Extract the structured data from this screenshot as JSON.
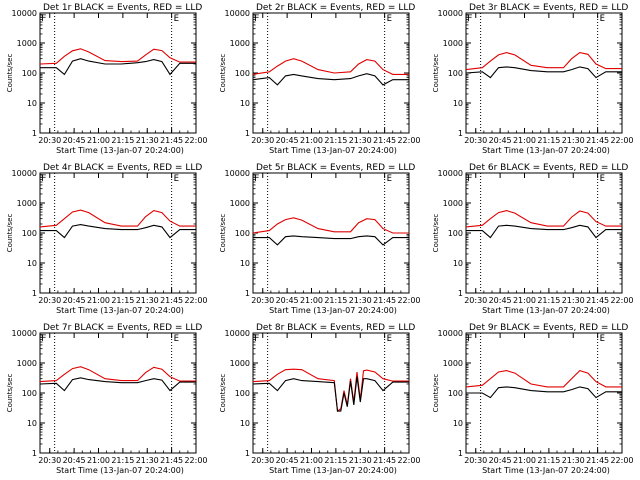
{
  "figure": {
    "xlabel": "Start Time (13-Jan-07 20:24:00)",
    "ylabel": "Counts/sec",
    "x_tick_labels": [
      "20:30",
      "20:45",
      "21:00",
      "21:15",
      "21:30",
      "21:45",
      "22:00"
    ],
    "y_tick_labels": [
      "1",
      "10",
      "100",
      "1000",
      "10000"
    ],
    "marker_left": "F",
    "marker_right": "E",
    "series_colors": {
      "black": "#000000",
      "red": "#e00000"
    }
  },
  "chart_data": [
    {
      "type": "line",
      "title": "Det 1r BLACK = Events, RED = LLD",
      "yscale": "log",
      "ylim": [
        1,
        10000
      ],
      "x_minutes_after_start": [
        0,
        10,
        15,
        20,
        25,
        30,
        40,
        50,
        60,
        65,
        70,
        75,
        80,
        86,
        91,
        96
      ],
      "series": [
        {
          "values": [
            200,
            210,
            360,
            550,
            640,
            500,
            260,
            240,
            250,
            400,
            620,
            560,
            320,
            230,
            230,
            230
          ]
        },
        {
          "values": [
            150,
            150,
            90,
            250,
            300,
            250,
            200,
            200,
            220,
            240,
            280,
            240,
            90,
            210,
            210,
            210
          ]
        }
      ],
      "vlines_minutes_after_start": [
        9,
        81
      ]
    },
    {
      "type": "line",
      "title": "Det 2r BLACK = Events, RED = LLD",
      "yscale": "log",
      "ylim": [
        1,
        10000
      ],
      "x_minutes_after_start": [
        0,
        10,
        15,
        20,
        25,
        30,
        40,
        50,
        60,
        65,
        70,
        75,
        80,
        86,
        91,
        96
      ],
      "series": [
        {
          "values": [
            90,
            110,
            170,
            250,
            300,
            250,
            130,
            100,
            110,
            200,
            280,
            250,
            130,
            90,
            90,
            90
          ]
        },
        {
          "values": [
            60,
            70,
            40,
            80,
            90,
            80,
            65,
            60,
            65,
            80,
            95,
            80,
            40,
            60,
            60,
            60
          ]
        }
      ],
      "vlines_minutes_after_start": [
        9,
        81
      ]
    },
    {
      "type": "line",
      "title": "Det 3r BLACK = Events, RED = LLD",
      "yscale": "log",
      "ylim": [
        1,
        10000
      ],
      "x_minutes_after_start": [
        0,
        10,
        15,
        20,
        25,
        30,
        40,
        50,
        60,
        65,
        70,
        75,
        80,
        86,
        91,
        96
      ],
      "series": [
        {
          "values": [
            130,
            150,
            250,
            400,
            480,
            400,
            180,
            150,
            150,
            300,
            480,
            420,
            200,
            140,
            140,
            140
          ]
        },
        {
          "values": [
            100,
            110,
            70,
            150,
            160,
            150,
            120,
            110,
            110,
            130,
            160,
            140,
            70,
            110,
            110,
            110
          ]
        }
      ],
      "vlines_minutes_after_start": [
        9,
        81
      ]
    },
    {
      "type": "line",
      "title": "Det 4r BLACK = Events, RED = LLD",
      "yscale": "log",
      "ylim": [
        1,
        10000
      ],
      "x_minutes_after_start": [
        0,
        10,
        15,
        20,
        25,
        30,
        40,
        50,
        60,
        65,
        70,
        75,
        80,
        86,
        91,
        96
      ],
      "series": [
        {
          "values": [
            160,
            180,
            300,
            500,
            580,
            480,
            220,
            170,
            170,
            350,
            560,
            480,
            250,
            170,
            170,
            170
          ]
        },
        {
          "values": [
            120,
            120,
            70,
            170,
            190,
            170,
            140,
            130,
            130,
            150,
            180,
            160,
            70,
            130,
            130,
            130
          ]
        }
      ],
      "vlines_minutes_after_start": [
        9,
        81
      ]
    },
    {
      "type": "line",
      "title": "Det 5r BLACK = Events, RED = LLD",
      "yscale": "log",
      "ylim": [
        1,
        10000
      ],
      "x_minutes_after_start": [
        0,
        10,
        15,
        20,
        25,
        30,
        40,
        50,
        60,
        65,
        70,
        75,
        80,
        86,
        91,
        96
      ],
      "series": [
        {
          "values": [
            100,
            120,
            200,
            280,
            320,
            270,
            140,
            110,
            110,
            220,
            300,
            280,
            140,
            100,
            100,
            100
          ]
        },
        {
          "values": [
            70,
            70,
            40,
            75,
            80,
            75,
            70,
            65,
            65,
            75,
            80,
            75,
            40,
            70,
            70,
            70
          ]
        }
      ],
      "vlines_minutes_after_start": [
        9,
        81
      ]
    },
    {
      "type": "line",
      "title": "Det 6r BLACK = Events, RED = LLD",
      "yscale": "log",
      "ylim": [
        1,
        10000
      ],
      "x_minutes_after_start": [
        0,
        10,
        15,
        20,
        25,
        30,
        40,
        50,
        60,
        65,
        70,
        75,
        80,
        86,
        91,
        96
      ],
      "series": [
        {
          "values": [
            160,
            180,
            300,
            480,
            560,
            460,
            220,
            170,
            170,
            340,
            540,
            460,
            240,
            170,
            170,
            170
          ]
        },
        {
          "values": [
            120,
            120,
            70,
            170,
            180,
            170,
            140,
            130,
            130,
            150,
            180,
            160,
            70,
            130,
            130,
            130
          ]
        }
      ],
      "vlines_minutes_after_start": [
        9,
        81
      ]
    },
    {
      "type": "line",
      "title": "Det 7r BLACK = Events, RED = LLD",
      "yscale": "log",
      "ylim": [
        1,
        10000
      ],
      "x_minutes_after_start": [
        0,
        10,
        15,
        20,
        25,
        30,
        40,
        50,
        60,
        65,
        70,
        75,
        80,
        86,
        91,
        96
      ],
      "series": [
        {
          "values": [
            240,
            260,
            420,
            650,
            750,
            600,
            300,
            260,
            260,
            480,
            720,
            620,
            350,
            250,
            250,
            250
          ]
        },
        {
          "values": [
            200,
            210,
            120,
            280,
            320,
            280,
            240,
            220,
            220,
            260,
            300,
            270,
            120,
            230,
            230,
            230
          ]
        }
      ],
      "vlines_minutes_after_start": [
        9,
        81
      ]
    },
    {
      "type": "line",
      "title": "Det 8r BLACK = Events, RED = LLD",
      "yscale": "log",
      "ylim": [
        1,
        10000
      ],
      "x_minutes_after_start": [
        0,
        10,
        15,
        20,
        25,
        30,
        40,
        50,
        52,
        54,
        56,
        58,
        60,
        62,
        64,
        66,
        68,
        70,
        75,
        80,
        86,
        91,
        96
      ],
      "series": [
        {
          "values": [
            240,
            260,
            420,
            600,
            620,
            600,
            300,
            260,
            25,
            30,
            120,
            40,
            300,
            50,
            500,
            60,
            550,
            580,
            500,
            300,
            250,
            250,
            250
          ]
        },
        {
          "values": [
            200,
            210,
            120,
            260,
            300,
            260,
            240,
            220,
            25,
            25,
            100,
            35,
            250,
            40,
            350,
            50,
            300,
            300,
            260,
            120,
            230,
            230,
            230
          ]
        }
      ],
      "vlines_minutes_after_start": [
        9,
        81
      ]
    },
    {
      "type": "line",
      "title": "Det 9r BLACK = Events, RED = LLD",
      "yscale": "log",
      "ylim": [
        1,
        10000
      ],
      "x_minutes_after_start": [
        0,
        10,
        15,
        20,
        25,
        30,
        40,
        50,
        60,
        65,
        70,
        75,
        80,
        86,
        91,
        96
      ],
      "series": [
        {
          "values": [
            160,
            180,
            300,
            500,
            560,
            460,
            200,
            160,
            160,
            300,
            560,
            460,
            240,
            160,
            160,
            160
          ]
        },
        {
          "values": [
            100,
            100,
            70,
            150,
            160,
            150,
            120,
            110,
            110,
            130,
            160,
            140,
            70,
            110,
            110,
            110
          ]
        }
      ],
      "vlines_minutes_after_start": [
        9,
        81
      ]
    }
  ]
}
